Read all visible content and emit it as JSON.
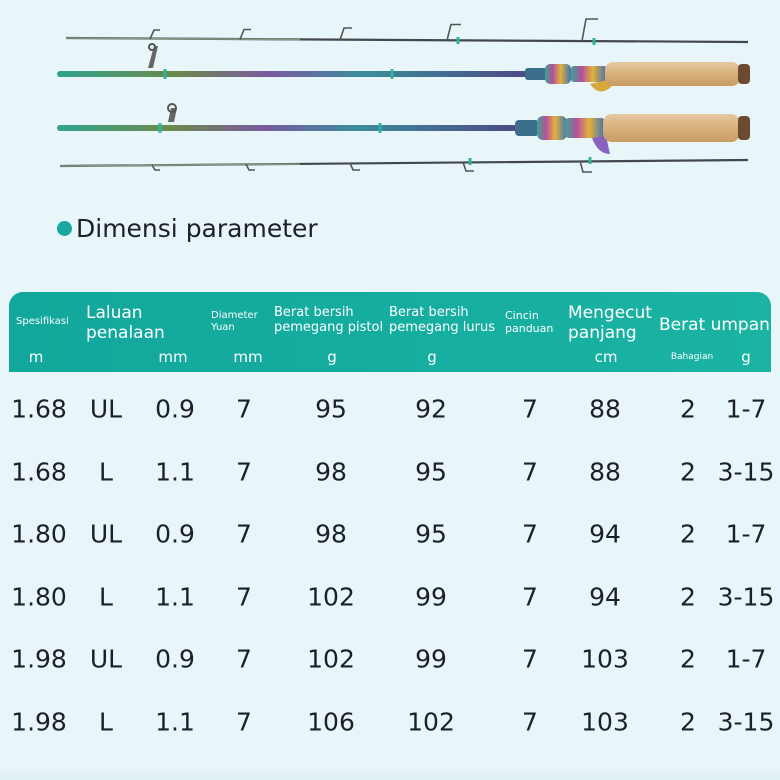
{
  "section_title": "Dimensi parameter",
  "table": {
    "headers": [
      {
        "label": "Spesifikasi",
        "unit": "m"
      },
      {
        "label": "Laluan penalaan",
        "unit": "mm"
      },
      {
        "label": "Diameter Yuan",
        "unit": "mm"
      },
      {
        "label": "Berat bersih pemegang pistol",
        "unit": "g"
      },
      {
        "label": "Berat bersih pemegang lurus",
        "unit": "g"
      },
      {
        "label": "Cincin panduan",
        "unit": ""
      },
      {
        "label": "Mengecut panjang",
        "unit": "cm"
      },
      {
        "label": "Berat umpan",
        "unit": "g",
        "subunit": "Bahagian"
      }
    ],
    "rows": [
      [
        "1.68",
        "UL",
        "0.9",
        "7",
        "95",
        "92",
        "7",
        "88",
        "2",
        "1-7"
      ],
      [
        "1.68",
        "L",
        "1.1",
        "7",
        "98",
        "95",
        "7",
        "88",
        "2",
        "3-15"
      ],
      [
        "1.80",
        "UL",
        "0.9",
        "7",
        "98",
        "95",
        "7",
        "94",
        "2",
        "1-7"
      ],
      [
        "1.80",
        "L",
        "1.1",
        "7",
        "102",
        "99",
        "7",
        "94",
        "2",
        "3-15"
      ],
      [
        "1.98",
        "UL",
        "0.9",
        "7",
        "102",
        "99",
        "7",
        "103",
        "2",
        "1-7"
      ],
      [
        "1.98",
        "L",
        "1.1",
        "7",
        "106",
        "102",
        "7",
        "103",
        "2",
        "3-15"
      ]
    ]
  },
  "colors": {
    "header_bg": "#14aa9e",
    "accent_dot": "#1aa9a1",
    "page_bg": "#e8f6f9",
    "text": "#1d2024"
  }
}
